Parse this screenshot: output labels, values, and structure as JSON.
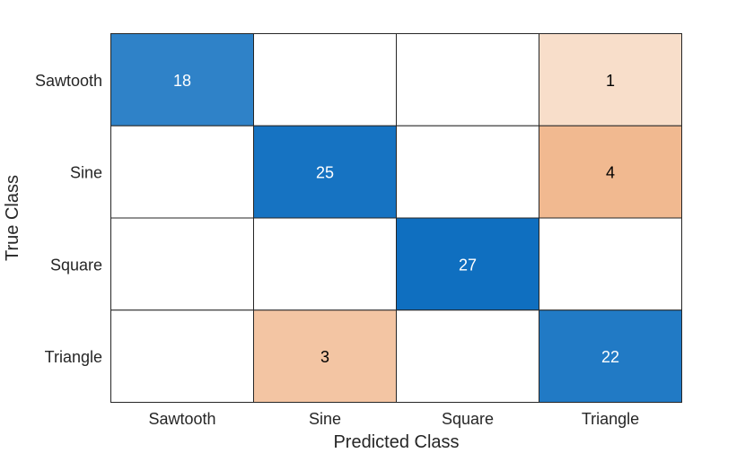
{
  "chart_data": {
    "type": "heatmap",
    "title": "",
    "xlabel": "Predicted Class",
    "ylabel": "True Class",
    "x_categories": [
      "Sawtooth",
      "Sine",
      "Square",
      "Triangle"
    ],
    "y_categories": [
      "Sawtooth",
      "Sine",
      "Square",
      "Triangle"
    ],
    "values": [
      [
        18,
        0,
        0,
        1
      ],
      [
        0,
        25,
        0,
        4
      ],
      [
        0,
        0,
        27,
        0
      ],
      [
        0,
        3,
        0,
        22
      ]
    ],
    "cell_labels_zero_hidden": true,
    "colors": {
      "diagonal_max": "#0f6fc0",
      "diagonal_min": "#ffffff",
      "offdiagonal_max": "#f1b990",
      "offdiagonal_min": "#ffffff",
      "text_dark": "#000000",
      "text_light": "#ffffff",
      "grid": "#262626"
    }
  }
}
